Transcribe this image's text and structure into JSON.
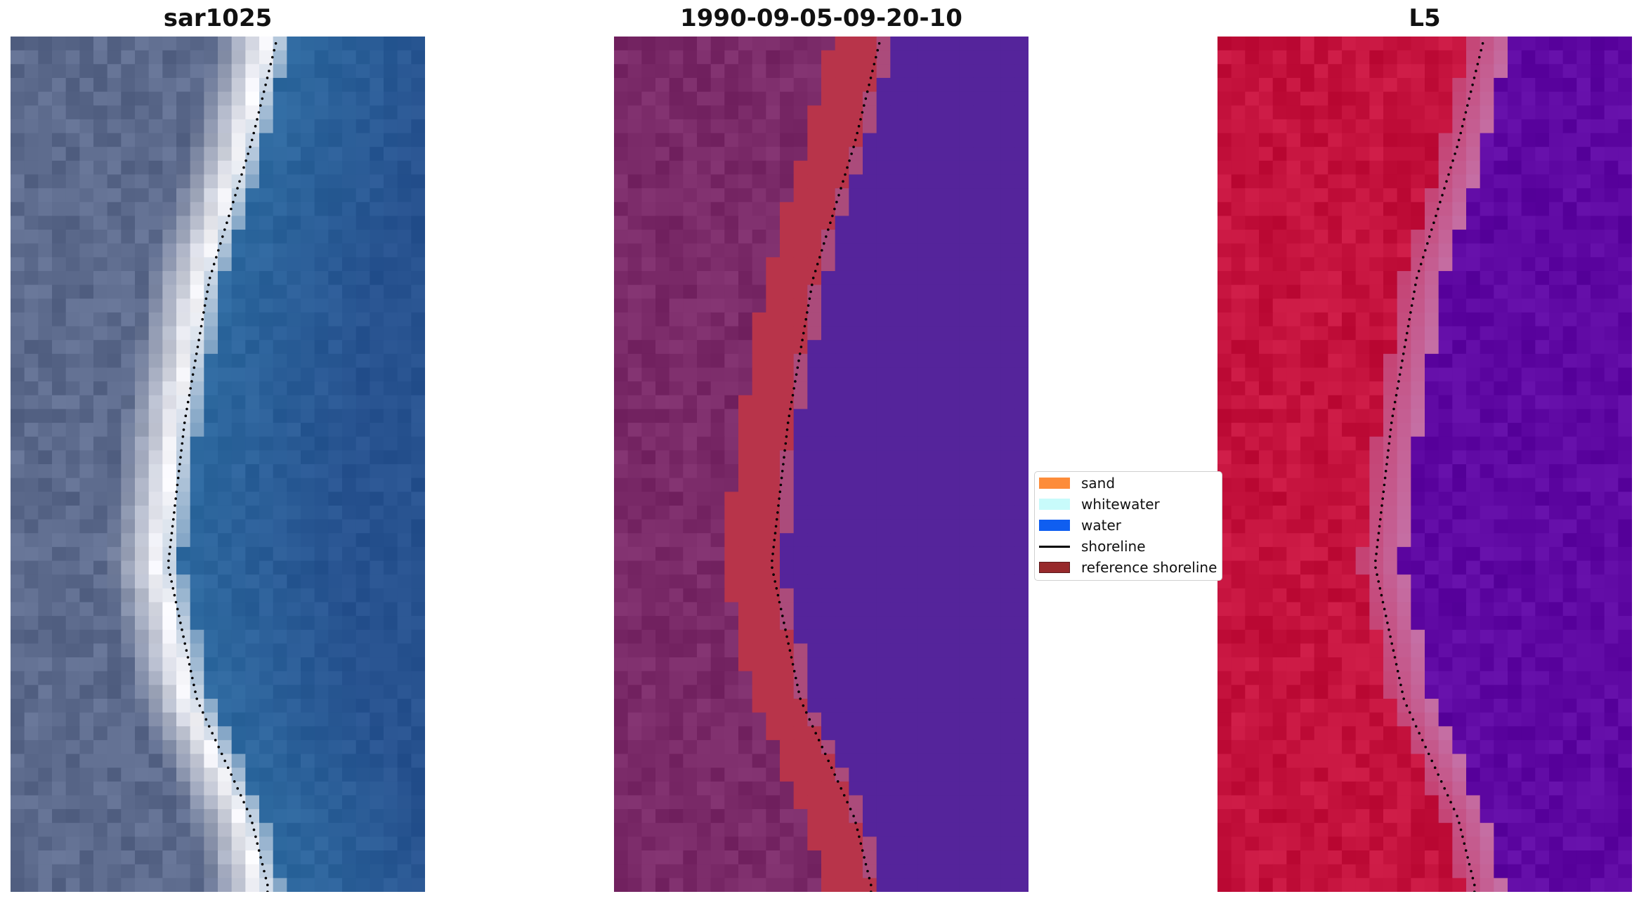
{
  "panels": [
    {
      "title": "sar1025",
      "type": "rgb"
    },
    {
      "title": "1990-09-05-09-20-10",
      "type": "classification"
    },
    {
      "title": "L5",
      "type": "index"
    }
  ],
  "legend": {
    "items": [
      {
        "label": "sand",
        "color": "#fd8c3a",
        "kind": "patch"
      },
      {
        "label": "whitewater",
        "color": "#c8fbfb",
        "kind": "patch"
      },
      {
        "label": "water",
        "color": "#0f5ef0",
        "kind": "patch"
      },
      {
        "label": "shoreline",
        "color": "#000000",
        "kind": "line"
      },
      {
        "label": "reference shoreline",
        "color": "#97292b",
        "kind": "patch"
      }
    ]
  },
  "colors": {
    "land_rgb": "#5c6a8c",
    "whitewater_rgb": "#f4f4f8",
    "water_rgb": "#2e6aa0",
    "class_land": "#7a2a68",
    "class_sand_overlay": "#b8344a",
    "class_water": "#55249b",
    "index_high": "#c4123d",
    "index_low": "#5e08a2",
    "shoreline": "#000000"
  }
}
